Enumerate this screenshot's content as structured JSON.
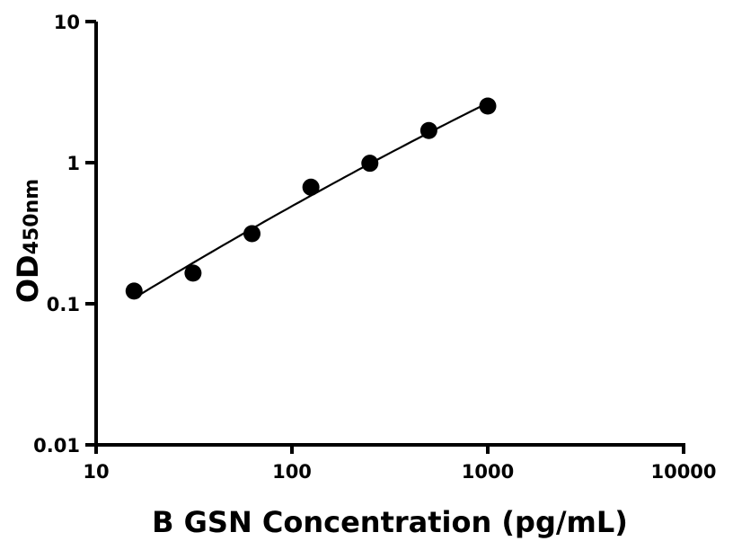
{
  "chart_data": {
    "type": "scatter",
    "title": "",
    "xlabel": "B GSN Concentration (pg/mL)",
    "ylabel": "OD",
    "ylabel_subscript": "450nm",
    "x_scale": "log",
    "y_scale": "log",
    "xlim": [
      10,
      10000
    ],
    "ylim": [
      0.01,
      10
    ],
    "x_ticks": [
      "10",
      "100",
      "1000",
      "10000"
    ],
    "y_ticks": [
      "0.01",
      "0.1",
      "1",
      "10"
    ],
    "grid": false,
    "series": [
      {
        "x": [
          15.625,
          31.25,
          62.5,
          125,
          250,
          500,
          1000
        ],
        "y": [
          0.123,
          0.165,
          0.314,
          0.67,
          0.99,
          1.69,
          2.52
        ],
        "marker": "circle",
        "color": "#000000",
        "fit_line": true
      }
    ]
  }
}
